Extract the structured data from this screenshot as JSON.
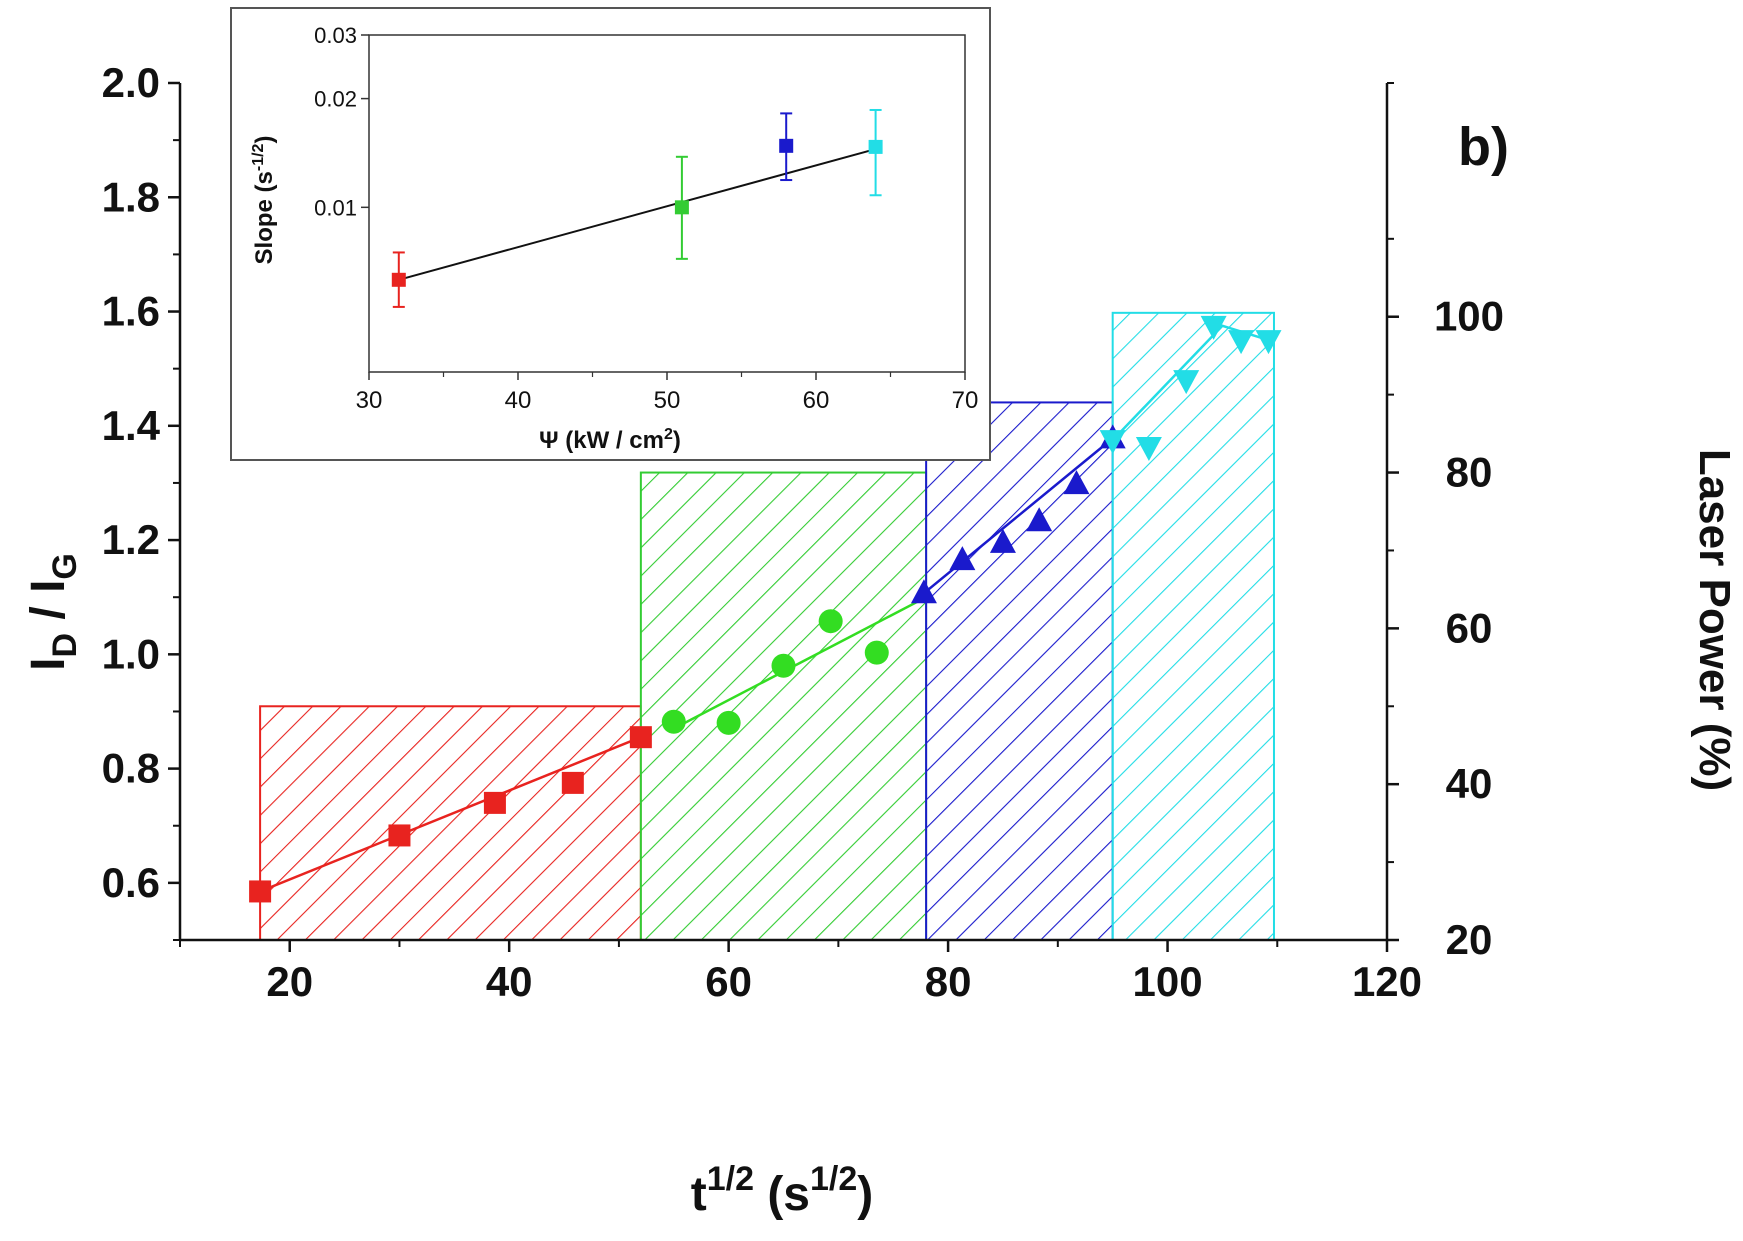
{
  "panel_label": "b)",
  "chart_data": [
    {
      "type": "scatter",
      "ylabel_main": "I",
      "ylabel_sub1": "D",
      "ylabel_sep": " / I",
      "ylabel_sub2": "G",
      "xlabel_main": "t",
      "xlabel_sup1": "1/2",
      "xlabel_mid": " (s",
      "xlabel_sup2": "1/2",
      "xlabel_end": ")",
      "y2label": "Laser Power (%)",
      "xlim": [
        10,
        120
      ],
      "ylim": [
        0.5,
        2.0
      ],
      "y2lim": [
        20,
        130
      ],
      "xticks": [
        20,
        40,
        60,
        80,
        100,
        120
      ],
      "xtick_labels": [
        "20",
        "40",
        "60",
        "80",
        "100",
        "120"
      ],
      "yticks": [
        0.6,
        0.8,
        1.0,
        1.2,
        1.4,
        1.6,
        1.8,
        2.0
      ],
      "ytick_labels": [
        "0.6",
        "0.8",
        "1.0",
        "1.2",
        "1.4",
        "1.6",
        "1.8",
        "2.0"
      ],
      "y2ticks": [
        20,
        40,
        60,
        80,
        100
      ],
      "y2tick_labels": [
        "20",
        "40",
        "60",
        "80",
        "100"
      ],
      "laser_power_bars": [
        {
          "x0": 17.3,
          "x1": 52,
          "power": 50,
          "color": "#e8231f"
        },
        {
          "x0": 52,
          "x1": 78,
          "power": 80,
          "color": "#33cc33"
        },
        {
          "x0": 78,
          "x1": 95,
          "power": 89,
          "color": "#1a1acc"
        },
        {
          "x0": 95,
          "x1": 109.7,
          "power": 100.5,
          "color": "#22dde6"
        }
      ],
      "series": [
        {
          "marker": "square",
          "color": "#e8231f",
          "x": [
            17.3,
            30,
            38.7,
            45.8,
            52
          ],
          "y": [
            0.585,
            0.683,
            0.74,
            0.775,
            0.855
          ],
          "fit": [
            [
              17.3,
              0.585
            ],
            [
              52,
              0.855
            ]
          ]
        },
        {
          "marker": "circle",
          "color": "#33dd22",
          "x": [
            55,
            60,
            65,
            69.3,
            73.5
          ],
          "y": [
            0.882,
            0.88,
            0.98,
            1.058,
            1.003
          ],
          "fit": [
            [
              55,
              0.87
            ],
            [
              78,
              1.1
            ]
          ]
        },
        {
          "marker": "triangle-up",
          "color": "#1a1acc",
          "x": [
            77.8,
            81.3,
            85,
            88.3,
            91.7,
            95
          ],
          "y": [
            1.107,
            1.165,
            1.195,
            1.233,
            1.298,
            1.378
          ],
          "fit": [
            [
              77.8,
              1.107
            ],
            [
              95,
              1.378
            ]
          ]
        },
        {
          "marker": "triangle-down",
          "color": "#22dde6",
          "x": [
            95,
            98.3,
            101.7,
            104.2,
            106.7,
            109.2
          ],
          "y": [
            1.375,
            1.363,
            1.48,
            1.575,
            1.55,
            1.55
          ],
          "fit": [
            [
              95,
              1.375
            ],
            [
              105,
              1.575
            ],
            [
              109.2,
              1.55
            ]
          ]
        }
      ]
    },
    {
      "type": "scatter",
      "ylabel_main": "Slope (s",
      "ylabel_sup": "-1/2",
      "ylabel_end": ")",
      "xlabel_main": "Ψ  (kW / cm",
      "xlabel_sup": "2",
      "xlabel_end": ")",
      "xlim": [
        30,
        70
      ],
      "ylim": [
        0.0035,
        0.03
      ],
      "yscale": "log",
      "xticks": [
        30,
        40,
        50,
        60,
        70
      ],
      "xtick_labels": [
        "30",
        "40",
        "50",
        "60",
        "70"
      ],
      "yticks": [
        0.01,
        0.02,
        0.03
      ],
      "ytick_labels": [
        "0.01",
        "0.02",
        "0.03"
      ],
      "points": [
        {
          "x": 32,
          "y": 0.0063,
          "err_low": 0.0053,
          "err_high": 0.0075,
          "color": "#e8231f"
        },
        {
          "x": 51,
          "y": 0.01,
          "err_low": 0.0072,
          "err_high": 0.0138,
          "color": "#33cc33"
        },
        {
          "x": 58,
          "y": 0.0148,
          "err_low": 0.0119,
          "err_high": 0.0182,
          "color": "#1a1acc"
        },
        {
          "x": 64,
          "y": 0.0147,
          "err_low": 0.0108,
          "err_high": 0.0186,
          "color": "#22dde6"
        }
      ],
      "fit": [
        [
          32,
          0.0063
        ],
        [
          64,
          0.0145
        ]
      ]
    }
  ]
}
